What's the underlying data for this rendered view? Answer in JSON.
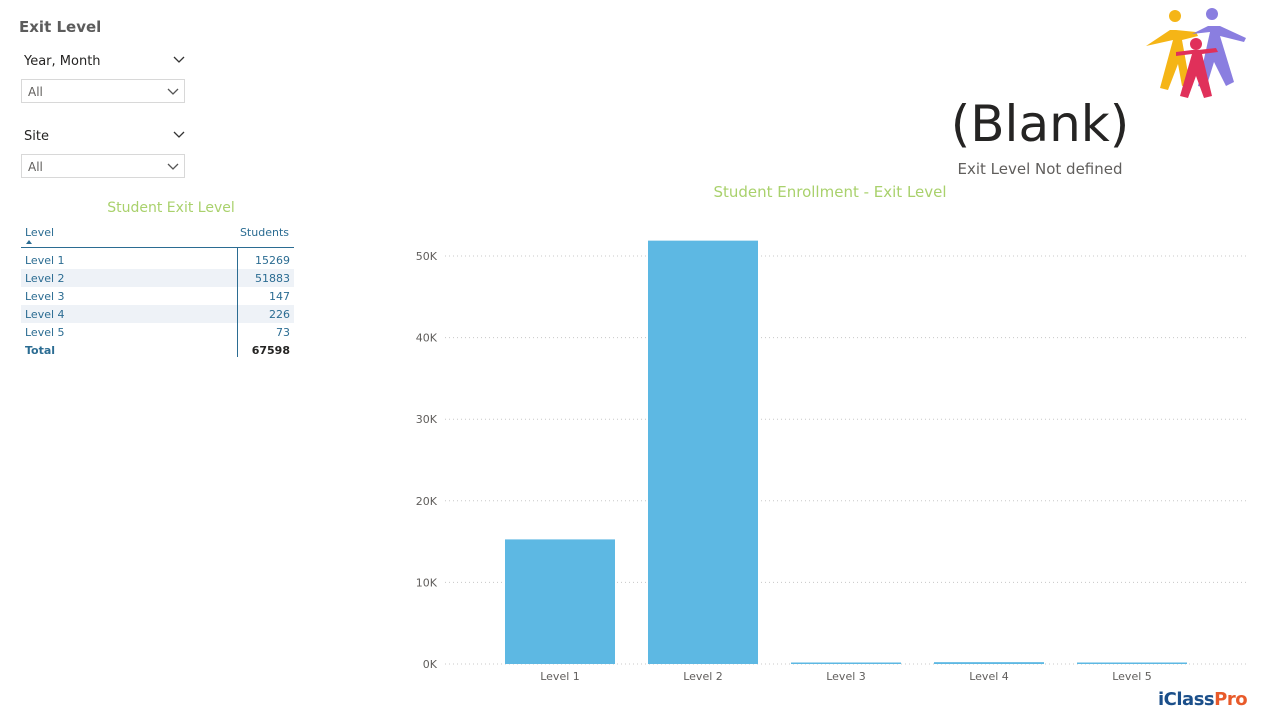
{
  "page": {
    "title": "Exit Level"
  },
  "filters": [
    {
      "label": "Year, Month",
      "value": "All"
    },
    {
      "label": "Site",
      "value": "All"
    }
  ],
  "table": {
    "title": "Student Exit Level",
    "columns": [
      "Level",
      "Students"
    ],
    "rows": [
      {
        "level": "Level 1",
        "students": "15269"
      },
      {
        "level": "Level 2",
        "students": "51883"
      },
      {
        "level": "Level 3",
        "students": "147"
      },
      {
        "level": "Level 4",
        "students": "226"
      },
      {
        "level": "Level 5",
        "students": "73"
      }
    ],
    "total": {
      "label": "Total",
      "students": "67598"
    }
  },
  "card": {
    "value": "(Blank)",
    "label": "Exit Level Not defined"
  },
  "brand": {
    "prefix": "iClass",
    "suffix": "Pro",
    "prefix_color": "#1b4f8a",
    "suffix_color": "#e85a2a"
  },
  "colors": {
    "accent_green": "#a9d16c",
    "bar": "#5db8e3",
    "table_text": "#2b6c92"
  },
  "chart_data": {
    "type": "bar",
    "title": "Student Enrollment - Exit Level",
    "categories": [
      "Level 1",
      "Level 2",
      "Level 3",
      "Level 4",
      "Level 5"
    ],
    "values": [
      15269,
      51883,
      147,
      226,
      73
    ],
    "yticks": [
      "0K",
      "10K",
      "20K",
      "30K",
      "40K",
      "50K"
    ],
    "ylim": [
      0,
      50000
    ],
    "xlabel": "",
    "ylabel": "",
    "grid": true
  }
}
